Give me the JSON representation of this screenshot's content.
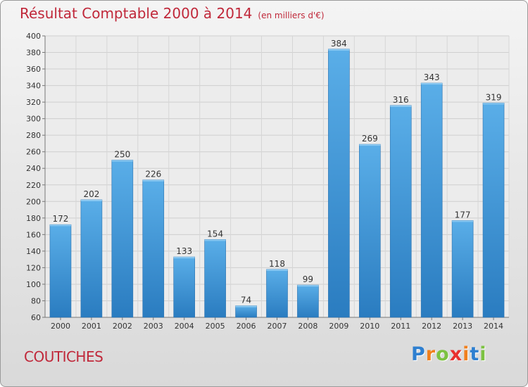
{
  "header": {
    "title": "Résultat Comptable 2000 à 2014",
    "unit": "(en milliers d'€)"
  },
  "commune": "COUTICHES",
  "logo": {
    "letters": [
      "P",
      "r",
      "o",
      "x",
      "i",
      "t",
      "i"
    ],
    "colors": [
      "#2e7fd0",
      "#f0801e",
      "#7cc242",
      "#e8302e",
      "#f0801e",
      "#2e7fd0",
      "#7cc242"
    ]
  },
  "chart_data": {
    "type": "bar",
    "title": "Résultat Comptable 2000 à 2014",
    "subtitle": "(en milliers d'€)",
    "xlabel": "",
    "ylabel": "",
    "categories": [
      "2000",
      "2001",
      "2002",
      "2003",
      "2004",
      "2005",
      "2006",
      "2007",
      "2008",
      "2009",
      "2010",
      "2011",
      "2012",
      "2013",
      "2014"
    ],
    "values": [
      172,
      202,
      250,
      226,
      133,
      154,
      74,
      118,
      99,
      384,
      269,
      316,
      343,
      177,
      319
    ],
    "ylim": [
      60,
      400
    ],
    "yticks": [
      60,
      80,
      100,
      120,
      140,
      160,
      180,
      200,
      220,
      240,
      260,
      280,
      300,
      320,
      340,
      360,
      380,
      400
    ],
    "grid": true,
    "bar_color_top": "#5aaee8",
    "bar_color_bottom": "#2a7cc0"
  }
}
